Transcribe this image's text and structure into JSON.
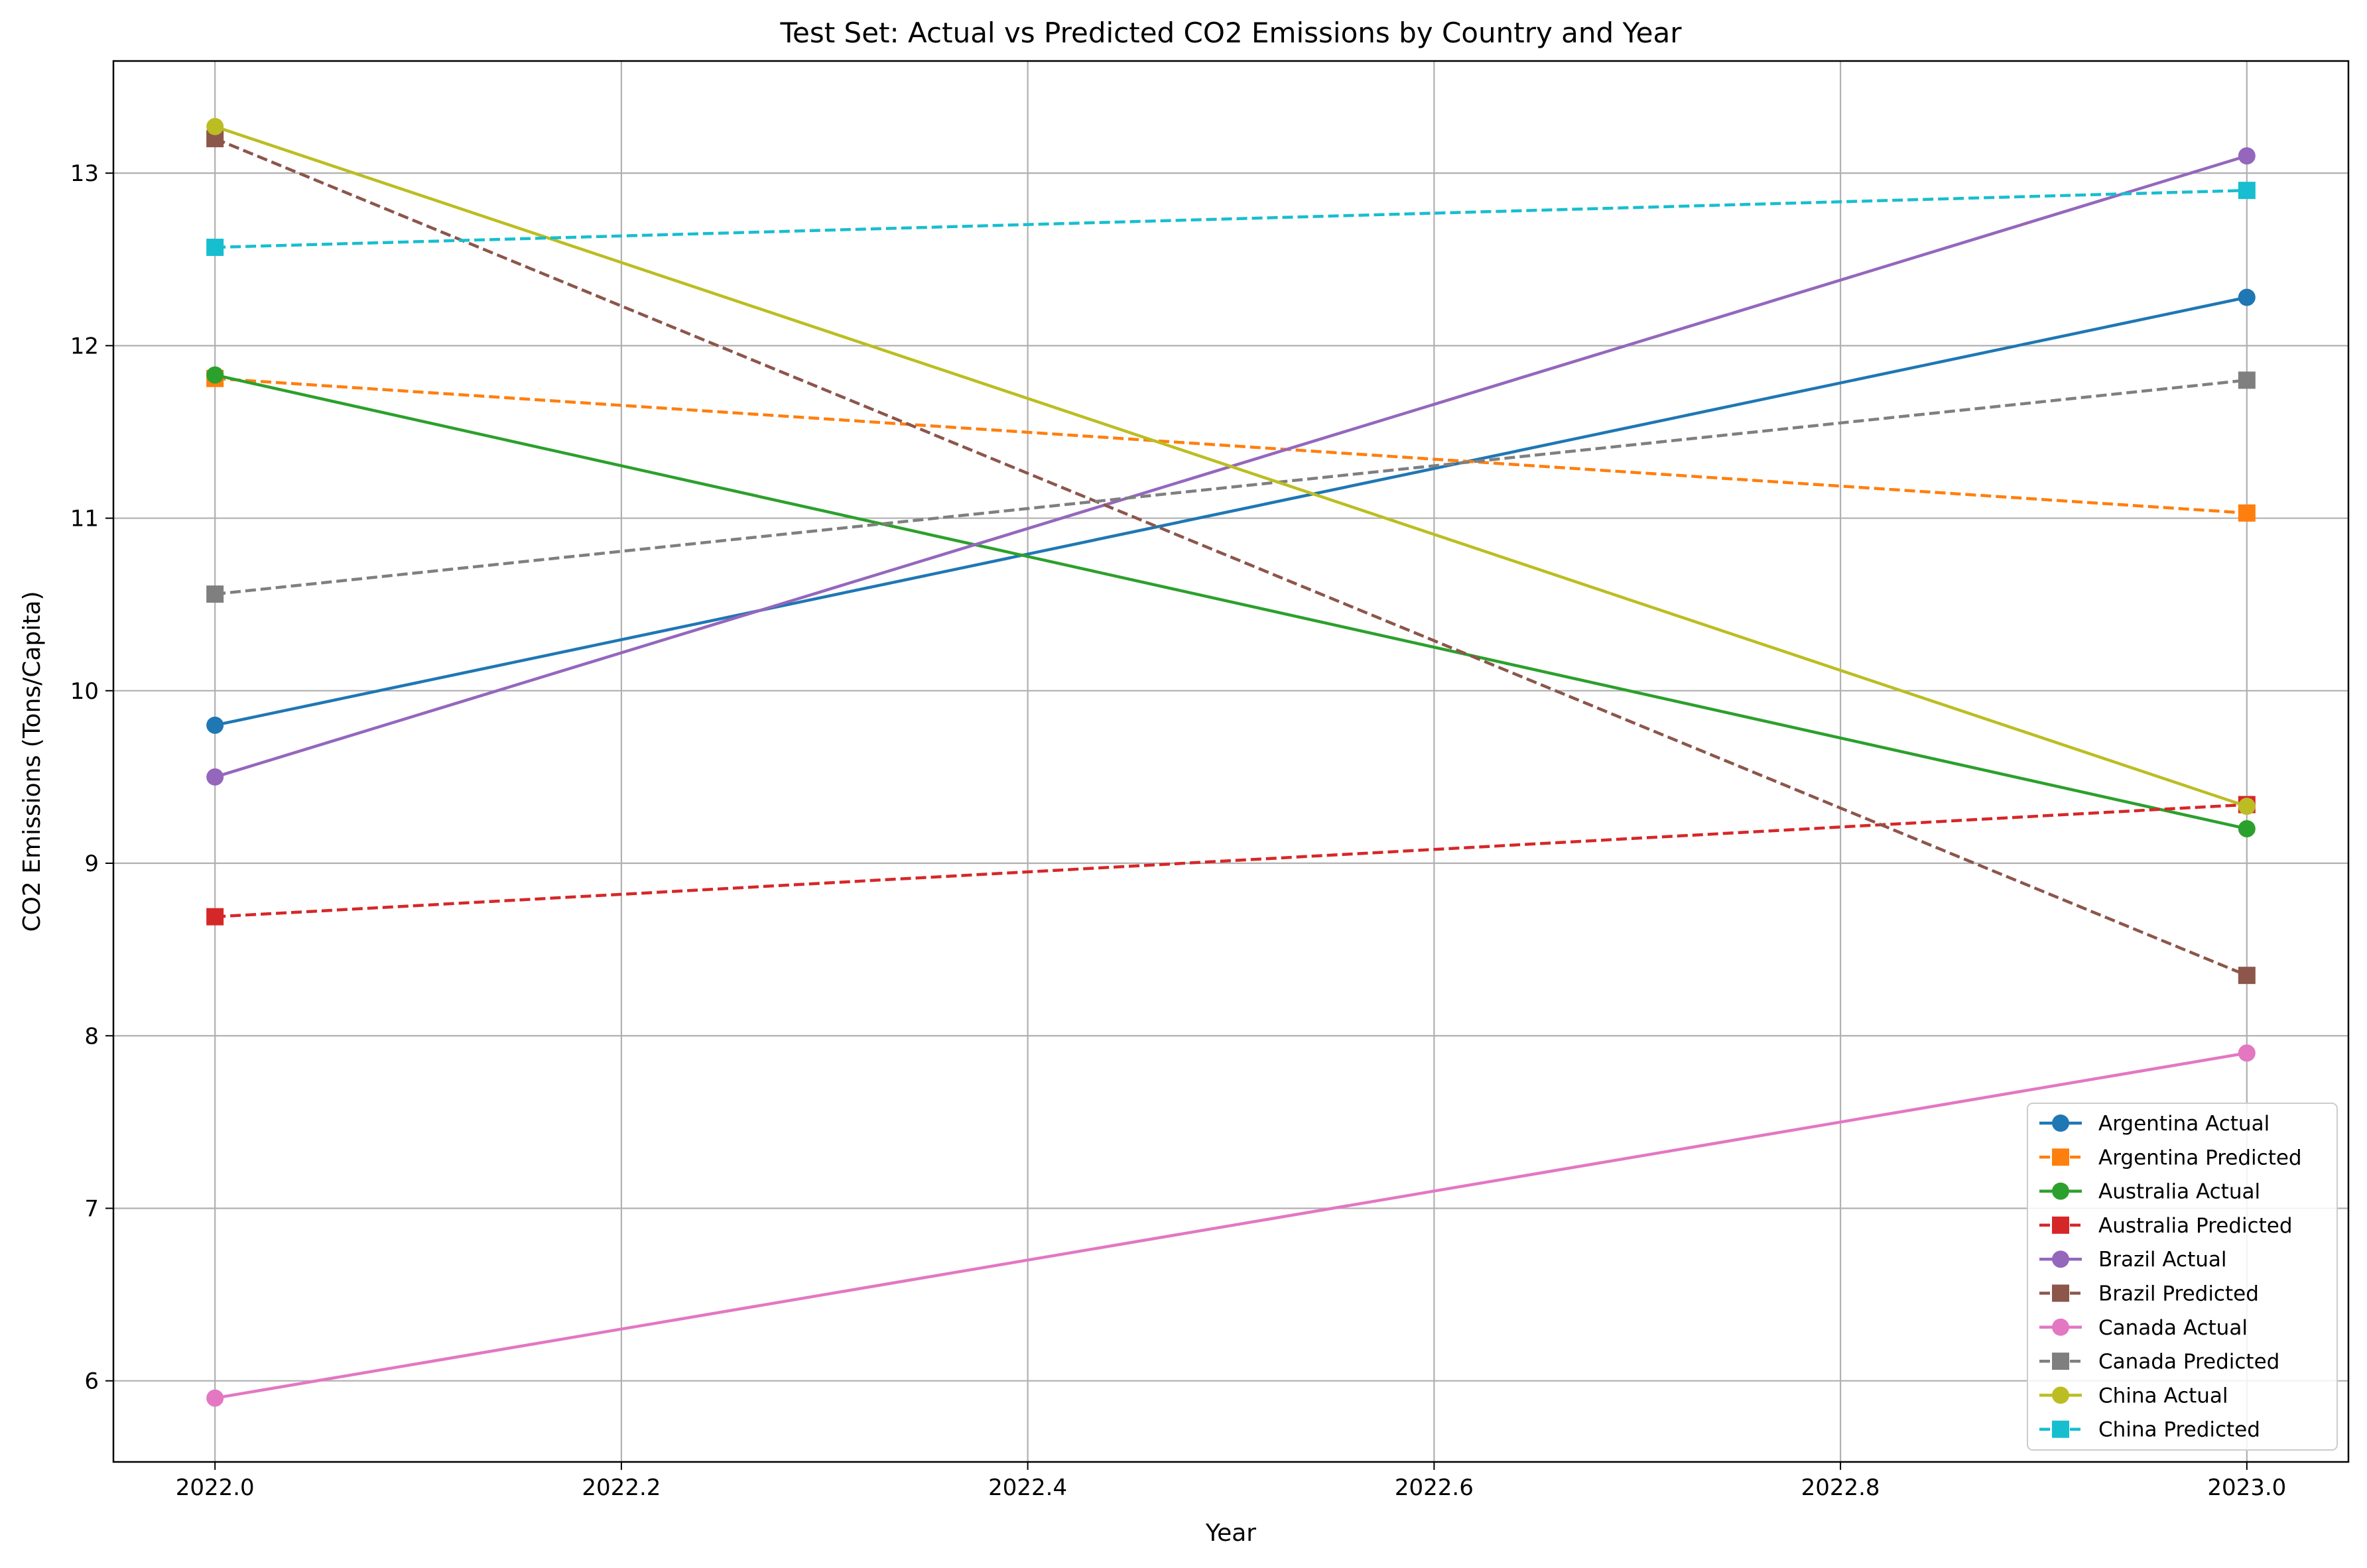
{
  "chart_data": {
    "type": "line",
    "title": "Test Set: Actual vs Predicted CO2 Emissions by Country and Year",
    "xlabel": "Year",
    "ylabel": "CO2 Emissions (Tons/Capita)",
    "xlim": [
      2021.95,
      2023.05
    ],
    "ylim": [
      5.53,
      13.65
    ],
    "xticks": [
      2022.0,
      2022.2,
      2022.4,
      2022.6,
      2022.8,
      2023.0
    ],
    "xtick_labels": [
      "2022.0",
      "2022.2",
      "2022.4",
      "2022.6",
      "2022.8",
      "2023.0"
    ],
    "yticks": [
      6,
      7,
      8,
      9,
      10,
      11,
      12,
      13
    ],
    "ytick_labels": [
      "6",
      "7",
      "8",
      "9",
      "10",
      "11",
      "12",
      "13"
    ],
    "grid": true,
    "legend_position": "bottom-right",
    "x": [
      2022,
      2023
    ],
    "series": [
      {
        "name": "Argentina Actual",
        "values": [
          9.8,
          12.28
        ],
        "color": "#1f77b4",
        "style": "solid",
        "marker": "circle"
      },
      {
        "name": "Argentina Predicted",
        "values": [
          11.81,
          11.03
        ],
        "color": "#ff7f0e",
        "style": "dashed",
        "marker": "square"
      },
      {
        "name": "Australia Actual",
        "values": [
          11.83,
          9.2
        ],
        "color": "#2ca02c",
        "style": "solid",
        "marker": "circle"
      },
      {
        "name": "Australia Predicted",
        "values": [
          8.69,
          9.34
        ],
        "color": "#d62728",
        "style": "dashed",
        "marker": "square"
      },
      {
        "name": "Brazil Actual",
        "values": [
          9.5,
          13.1
        ],
        "color": "#9467bd",
        "style": "solid",
        "marker": "circle"
      },
      {
        "name": "Brazil Predicted",
        "values": [
          13.2,
          8.35
        ],
        "color": "#8c564b",
        "style": "dashed",
        "marker": "square"
      },
      {
        "name": "Canada Actual",
        "values": [
          5.9,
          7.9
        ],
        "color": "#e377c2",
        "style": "solid",
        "marker": "circle"
      },
      {
        "name": "Canada Predicted",
        "values": [
          10.56,
          11.8
        ],
        "color": "#7f7f7f",
        "style": "dashed",
        "marker": "square"
      },
      {
        "name": "China Actual",
        "values": [
          13.27,
          9.33
        ],
        "color": "#bcbd22",
        "style": "solid",
        "marker": "circle"
      },
      {
        "name": "China Predicted",
        "values": [
          12.57,
          12.9
        ],
        "color": "#17becf",
        "style": "dashed",
        "marker": "square"
      }
    ]
  }
}
